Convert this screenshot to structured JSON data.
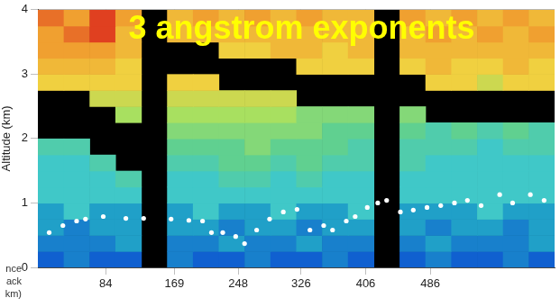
{
  "chart_data": {
    "type": "heatmap",
    "title": "3 angstrom exponents",
    "y_label": "Altitude (km)",
    "x_label": [
      "nce",
      "ack",
      "km)"
    ],
    "xlim": [
      0,
      640
    ],
    "xticks": [
      84,
      169,
      248,
      326,
      406,
      486
    ],
    "ylim": [
      0,
      4
    ],
    "yticks": [
      0,
      1,
      2,
      3,
      4
    ],
    "grid": true,
    "color_range": [
      0,
      2
    ],
    "cell_x_edges": [
      0,
      32,
      64,
      96,
      128,
      160,
      192,
      224,
      256,
      288,
      320,
      352,
      384,
      416,
      448,
      480,
      512,
      544,
      576,
      608,
      640
    ],
    "cell_y_edges": [
      0,
      0.25,
      0.5,
      0.75,
      1,
      1.25,
      1.5,
      1.75,
      2,
      2.25,
      2.5,
      2.75,
      3,
      3.25,
      3.5,
      3.75,
      4
    ],
    "cells": [
      [
        0.5,
        0.6,
        0.5,
        0.5,
        null,
        0.6,
        0.5,
        0.5,
        0.6,
        0.5,
        0.5,
        0.6,
        0.5,
        null,
        0.5,
        0.6,
        0.5,
        0.5,
        0.6,
        0.5
      ],
      [
        0.6,
        0.6,
        0.6,
        0.7,
        null,
        0.6,
        0.6,
        0.7,
        0.6,
        0.6,
        0.7,
        0.6,
        0.6,
        null,
        0.6,
        0.7,
        0.6,
        0.6,
        0.6,
        0.7
      ],
      [
        0.7,
        0.6,
        0.7,
        0.7,
        null,
        0.7,
        0.7,
        0.6,
        0.7,
        0.7,
        0.6,
        0.7,
        0.7,
        null,
        0.7,
        0.6,
        0.7,
        0.7,
        0.6,
        0.7
      ],
      [
        0.7,
        0.8,
        0.7,
        0.7,
        null,
        0.7,
        0.8,
        0.7,
        0.7,
        0.8,
        0.7,
        0.7,
        0.8,
        null,
        0.7,
        0.7,
        0.7,
        0.8,
        0.7,
        0.7
      ],
      [
        0.8,
        0.8,
        0.8,
        0.8,
        null,
        0.8,
        0.8,
        0.8,
        0.8,
        0.8,
        0.8,
        0.8,
        0.8,
        null,
        0.8,
        0.8,
        0.8,
        0.8,
        0.8,
        0.8
      ],
      [
        0.8,
        0.8,
        0.8,
        0.9,
        null,
        0.8,
        0.8,
        0.9,
        0.9,
        0.8,
        0.9,
        0.8,
        0.8,
        null,
        0.8,
        0.8,
        0.8,
        0.8,
        0.8,
        0.8
      ],
      [
        0.8,
        0.8,
        0.9,
        null,
        null,
        0.9,
        0.9,
        1.0,
        1.0,
        0.9,
        1.0,
        0.9,
        0.9,
        null,
        0.9,
        0.8,
        0.8,
        0.8,
        0.8,
        0.8
      ],
      [
        0.9,
        0.9,
        null,
        null,
        null,
        1.0,
        1.0,
        1.0,
        1.1,
        1.0,
        1.0,
        1.0,
        0.9,
        null,
        0.9,
        0.9,
        0.9,
        0.8,
        0.9,
        0.9
      ],
      [
        null,
        null,
        null,
        null,
        null,
        1.1,
        1.1,
        1.1,
        1.1,
        1.1,
        1.1,
        1.0,
        1.0,
        null,
        1.0,
        0.9,
        1.0,
        0.9,
        1.0,
        0.9
      ],
      [
        null,
        null,
        null,
        1.2,
        null,
        1.2,
        1.2,
        1.2,
        1.2,
        1.2,
        1.1,
        1.1,
        1.1,
        null,
        1.1,
        null,
        null,
        null,
        null,
        null
      ],
      [
        null,
        null,
        1.3,
        1.3,
        null,
        1.3,
        1.3,
        1.3,
        1.3,
        1.3,
        null,
        null,
        null,
        null,
        null,
        null,
        null,
        null,
        null,
        null
      ],
      [
        1.4,
        1.4,
        1.4,
        1.4,
        null,
        1.4,
        1.4,
        null,
        null,
        null,
        null,
        null,
        null,
        null,
        null,
        1.4,
        1.4,
        1.3,
        1.4,
        1.4
      ],
      [
        1.5,
        1.5,
        1.5,
        1.4,
        null,
        null,
        null,
        null,
        null,
        null,
        1.4,
        1.4,
        1.4,
        null,
        1.4,
        1.5,
        1.4,
        1.4,
        1.5,
        1.4
      ],
      [
        1.6,
        1.6,
        1.6,
        1.5,
        null,
        null,
        null,
        1.4,
        1.4,
        1.5,
        1.5,
        1.4,
        1.5,
        null,
        1.5,
        1.5,
        1.5,
        1.5,
        1.5,
        1.5
      ],
      [
        1.6,
        1.7,
        1.8,
        1.5,
        null,
        1.5,
        1.5,
        1.5,
        1.5,
        1.5,
        1.5,
        1.5,
        1.5,
        null,
        1.5,
        1.6,
        1.5,
        1.6,
        1.5,
        1.6
      ],
      [
        1.7,
        1.6,
        1.8,
        1.6,
        null,
        1.5,
        1.6,
        1.5,
        1.6,
        1.5,
        1.6,
        1.5,
        1.5,
        null,
        1.6,
        1.5,
        1.6,
        1.5,
        1.6,
        1.5
      ]
    ],
    "series": [
      {
        "type": "scatter",
        "color": "#ffffff",
        "marker": "circle",
        "x": [
          14,
          31,
          48,
          59,
          81,
          109,
          131,
          165,
          187,
          204,
          215,
          229,
          245,
          256,
          271,
          287,
          304,
          321,
          337,
          354,
          365,
          382,
          393,
          408,
          421,
          432,
          449,
          465,
          482,
          499,
          516,
          532,
          549,
          572,
          588,
          610,
          627
        ],
        "values": [
          0.54,
          0.65,
          0.72,
          0.75,
          0.79,
          0.76,
          0.76,
          0.75,
          0.73,
          0.72,
          0.54,
          0.54,
          0.48,
          0.37,
          0.58,
          0.75,
          0.86,
          0.9,
          0.58,
          0.65,
          0.58,
          0.72,
          0.79,
          0.93,
          1.0,
          1.04,
          0.86,
          0.89,
          0.93,
          0.96,
          1.0,
          1.04,
          0.96,
          1.13,
          1.0,
          1.13,
          1.04
        ]
      }
    ]
  }
}
